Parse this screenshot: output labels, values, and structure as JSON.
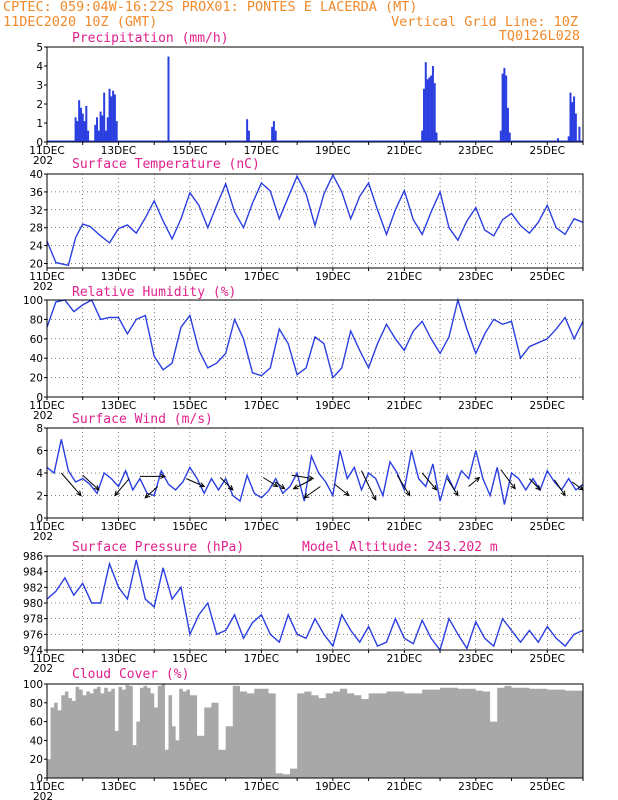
{
  "header": {
    "left_line1": "CPTEC:  059:04W-16:22S  PROX01: PONTES E LACERDA (MT)",
    "left_line2": "11DEC2020 10Z (GMT)",
    "right_line2": "Vertical Grid Line: 10Z",
    "right_line3": "TQ0126L028"
  },
  "colors": {
    "series": "#2b3fe0",
    "cloud": "#a8a8a8",
    "header": "#f08a2c",
    "panel_title": "#e0208c"
  },
  "x_axis": {
    "start_day": 11,
    "end_day": 26,
    "tick_labels": [
      {
        "day": 11,
        "label": "11DEC"
      },
      {
        "day": 13,
        "label": "13DEC"
      },
      {
        "day": 15,
        "label": "15DEC"
      },
      {
        "day": 17,
        "label": "17DEC"
      },
      {
        "day": 19,
        "label": "19DEC"
      },
      {
        "day": 21,
        "label": "21DEC"
      },
      {
        "day": 23,
        "label": "23DEC"
      },
      {
        "day": 25,
        "label": "25DEC"
      }
    ],
    "year_stub": "202"
  },
  "chart_data": [
    {
      "type": "bar",
      "id": "precip",
      "title": "Precipitation (mm/h)",
      "ylim": [
        0,
        5
      ],
      "yticks": [
        0,
        1,
        2,
        3,
        4,
        5
      ],
      "bars": [
        [
          11.8,
          1.3
        ],
        [
          11.85,
          1.1
        ],
        [
          11.9,
          2.2
        ],
        [
          11.95,
          1.8
        ],
        [
          12.0,
          1.5
        ],
        [
          12.05,
          1.1
        ],
        [
          12.1,
          1.9
        ],
        [
          12.15,
          0.6
        ],
        [
          12.35,
          0.9
        ],
        [
          12.4,
          1.3
        ],
        [
          12.45,
          0.6
        ],
        [
          12.5,
          1.6
        ],
        [
          12.55,
          1.4
        ],
        [
          12.6,
          2.6
        ],
        [
          12.65,
          0.6
        ],
        [
          12.7,
          1.3
        ],
        [
          12.75,
          2.8
        ],
        [
          12.8,
          2.4
        ],
        [
          12.85,
          2.7
        ],
        [
          12.9,
          2.5
        ],
        [
          12.95,
          1.1
        ],
        [
          14.4,
          4.5
        ],
        [
          16.6,
          1.2
        ],
        [
          16.65,
          0.6
        ],
        [
          17.3,
          0.8
        ],
        [
          17.35,
          1.1
        ],
        [
          17.4,
          0.6
        ],
        [
          21.5,
          0.6
        ],
        [
          21.55,
          2.8
        ],
        [
          21.6,
          4.2
        ],
        [
          21.65,
          3.3
        ],
        [
          21.7,
          3.4
        ],
        [
          21.75,
          3.5
        ],
        [
          21.8,
          4.0
        ],
        [
          21.85,
          3.1
        ],
        [
          21.9,
          0.5
        ],
        [
          23.7,
          0.6
        ],
        [
          23.75,
          3.6
        ],
        [
          23.8,
          3.9
        ],
        [
          23.85,
          3.5
        ],
        [
          23.9,
          1.8
        ],
        [
          23.95,
          0.5
        ],
        [
          25.3,
          0.2
        ],
        [
          25.6,
          0.3
        ],
        [
          25.65,
          2.6
        ],
        [
          25.7,
          2.1
        ],
        [
          25.75,
          2.4
        ],
        [
          25.8,
          1.5
        ],
        [
          25.9,
          0.8
        ]
      ]
    },
    {
      "type": "line",
      "id": "temp",
      "title": "Surface Temperature (nC)",
      "ylim": [
        19,
        40
      ],
      "yticks": [
        20,
        24,
        28,
        32,
        36,
        40
      ],
      "x": [
        11.0,
        11.25,
        11.6,
        11.8,
        12.0,
        12.2,
        12.5,
        12.75,
        13.0,
        13.25,
        13.5,
        13.75,
        14.0,
        14.25,
        14.5,
        14.75,
        15.0,
        15.25,
        15.5,
        15.75,
        16.0,
        16.25,
        16.5,
        16.75,
        17.0,
        17.25,
        17.5,
        17.75,
        18.0,
        18.25,
        18.5,
        18.75,
        19.0,
        19.25,
        19.5,
        19.75,
        20.0,
        20.25,
        20.5,
        20.75,
        21.0,
        21.25,
        21.5,
        21.75,
        22.0,
        22.25,
        22.5,
        22.75,
        23.0,
        23.25,
        23.5,
        23.75,
        24.0,
        24.25,
        24.5,
        24.75,
        25.0,
        25.25,
        25.5,
        25.75,
        26.0
      ],
      "y": [
        25.0,
        20.2,
        19.6,
        25.8,
        28.8,
        28.3,
        26.2,
        24.6,
        27.8,
        28.6,
        26.8,
        30.2,
        34.0,
        29.5,
        25.5,
        30.0,
        35.8,
        33.0,
        28.0,
        33.0,
        37.8,
        31.5,
        28.0,
        33.5,
        38.0,
        36.2,
        30.0,
        34.8,
        39.5,
        35.5,
        28.5,
        35.5,
        39.8,
        36.0,
        30.0,
        35.0,
        38.0,
        32.0,
        26.5,
        32.0,
        36.3,
        29.8,
        26.5,
        31.5,
        36.0,
        28.0,
        25.2,
        29.5,
        32.5,
        27.5,
        26.2,
        29.8,
        31.2,
        28.5,
        26.8,
        29.2,
        33.0,
        28.0,
        26.5,
        30.0,
        29.2
      ]
    },
    {
      "type": "line",
      "id": "humidity",
      "title": "Relative Humidity (%)",
      "ylim": [
        0,
        100
      ],
      "yticks": [
        0,
        20,
        40,
        60,
        80,
        100
      ],
      "x": [
        11.0,
        11.25,
        11.5,
        11.75,
        12.0,
        12.25,
        12.5,
        12.75,
        13.0,
        13.25,
        13.5,
        13.75,
        14.0,
        14.25,
        14.5,
        14.75,
        15.0,
        15.25,
        15.5,
        15.75,
        16.0,
        16.25,
        16.5,
        16.75,
        17.0,
        17.25,
        17.5,
        17.75,
        18.0,
        18.25,
        18.5,
        18.75,
        19.0,
        19.25,
        19.5,
        19.75,
        20.0,
        20.25,
        20.5,
        20.75,
        21.0,
        21.25,
        21.5,
        21.75,
        22.0,
        22.25,
        22.5,
        22.75,
        23.0,
        23.25,
        23.5,
        23.75,
        24.0,
        24.25,
        24.5,
        24.75,
        25.0,
        25.25,
        25.5,
        25.75,
        26.0
      ],
      "y": [
        72,
        98,
        100,
        88,
        95,
        100,
        80,
        82,
        82,
        65,
        80,
        84,
        42,
        28,
        35,
        72,
        84,
        48,
        30,
        35,
        45,
        80,
        60,
        25,
        22,
        30,
        70,
        55,
        23,
        30,
        62,
        55,
        20,
        30,
        68,
        48,
        30,
        55,
        75,
        60,
        48,
        68,
        78,
        60,
        45,
        62,
        100,
        70,
        45,
        65,
        80,
        75,
        78,
        40,
        52,
        56,
        60,
        70,
        82,
        60,
        78
      ]
    },
    {
      "type": "line",
      "id": "wind",
      "title": "Surface Wind (m/s)",
      "ylim": [
        0,
        8
      ],
      "yticks": [
        0,
        2,
        4,
        6,
        8
      ],
      "x": [
        11.0,
        11.2,
        11.4,
        11.6,
        11.8,
        12.0,
        12.2,
        12.4,
        12.6,
        12.8,
        13.0,
        13.2,
        13.4,
        13.6,
        13.8,
        14.0,
        14.2,
        14.4,
        14.6,
        14.8,
        15.0,
        15.2,
        15.4,
        15.6,
        15.8,
        16.0,
        16.2,
        16.4,
        16.6,
        16.8,
        17.0,
        17.2,
        17.4,
        17.6,
        17.8,
        18.0,
        18.2,
        18.4,
        18.6,
        18.8,
        19.0,
        19.2,
        19.4,
        19.6,
        19.8,
        20.0,
        20.2,
        20.4,
        20.6,
        20.8,
        21.0,
        21.2,
        21.4,
        21.6,
        21.8,
        22.0,
        22.2,
        22.4,
        22.6,
        22.8,
        23.0,
        23.2,
        23.4,
        23.6,
        23.8,
        24.0,
        24.2,
        24.4,
        24.6,
        24.8,
        25.0,
        25.2,
        25.4,
        25.6,
        25.8,
        26.0
      ],
      "y": [
        4.5,
        4.0,
        7.0,
        4.2,
        3.2,
        3.5,
        3.0,
        2.2,
        4.0,
        3.5,
        2.8,
        4.2,
        2.5,
        3.5,
        2.2,
        2.0,
        4.2,
        3.0,
        2.5,
        3.2,
        4.5,
        3.5,
        2.2,
        3.5,
        2.5,
        3.5,
        2.0,
        1.5,
        3.8,
        2.2,
        1.8,
        2.4,
        3.5,
        2.2,
        2.8,
        4.0,
        1.5,
        5.5,
        4.0,
        3.2,
        2.0,
        6.0,
        3.5,
        4.5,
        2.5,
        4.0,
        3.5,
        2.0,
        5.0,
        4.0,
        2.5,
        6.0,
        3.5,
        2.8,
        4.8,
        1.5,
        3.8,
        2.5,
        4.2,
        3.5,
        6.0,
        3.5,
        2.0,
        4.5,
        1.2,
        4.0,
        3.5,
        2.5,
        3.5,
        2.5,
        4.2,
        3.2,
        2.5,
        3.5,
        2.5,
        3.0
      ],
      "arrows": [
        [
          11.4,
          4.0,
          11.95,
          2.0
        ],
        [
          12.0,
          3.8,
          12.45,
          2.5
        ],
        [
          13.3,
          3.5,
          12.9,
          2.0
        ],
        [
          13.6,
          3.7,
          14.3,
          3.7
        ],
        [
          14.1,
          2.8,
          13.75,
          1.8
        ],
        [
          14.9,
          3.5,
          15.4,
          2.8
        ],
        [
          15.85,
          3.6,
          16.2,
          2.5
        ],
        [
          17.05,
          3.6,
          17.45,
          2.8
        ],
        [
          17.4,
          3.2,
          17.65,
          2.6
        ],
        [
          17.85,
          3.8,
          18.45,
          3.5
        ],
        [
          18.4,
          3.4,
          17.9,
          2.6
        ],
        [
          18.65,
          2.8,
          18.2,
          1.8
        ],
        [
          19.05,
          3.0,
          19.45,
          2.0
        ],
        [
          19.8,
          4.2,
          20.2,
          1.6
        ],
        [
          20.8,
          3.8,
          21.15,
          2.0
        ],
        [
          21.5,
          4.0,
          21.9,
          2.5
        ],
        [
          22.2,
          3.5,
          22.5,
          2.0
        ],
        [
          22.8,
          2.8,
          23.1,
          3.6
        ],
        [
          23.7,
          4.3,
          24.1,
          2.6
        ],
        [
          24.5,
          3.5,
          24.8,
          2.5
        ],
        [
          25.2,
          3.4,
          25.5,
          2.0
        ],
        [
          25.7,
          3.2,
          26.0,
          2.5
        ]
      ]
    },
    {
      "type": "line",
      "id": "pressure",
      "title": "Surface Pressure (hPa)",
      "annotation": "Model Altitude: 243.202 m",
      "ylim": [
        974,
        986
      ],
      "yticks": [
        974,
        976,
        978,
        980,
        982,
        984,
        986
      ],
      "x": [
        11.0,
        11.25,
        11.5,
        11.75,
        12.0,
        12.25,
        12.5,
        12.75,
        13.0,
        13.25,
        13.5,
        13.75,
        14.0,
        14.25,
        14.5,
        14.75,
        15.0,
        15.25,
        15.5,
        15.75,
        16.0,
        16.25,
        16.5,
        16.75,
        17.0,
        17.25,
        17.5,
        17.75,
        18.0,
        18.25,
        18.5,
        18.75,
        19.0,
        19.25,
        19.5,
        19.75,
        20.0,
        20.25,
        20.5,
        20.75,
        21.0,
        21.25,
        21.5,
        21.75,
        22.0,
        22.25,
        22.5,
        22.75,
        23.0,
        23.25,
        23.5,
        23.75,
        24.0,
        24.25,
        24.5,
        24.75,
        25.0,
        25.25,
        25.5,
        25.75,
        26.0
      ],
      "y": [
        980.5,
        981.5,
        983.2,
        981.0,
        982.5,
        980.0,
        980.0,
        985.0,
        982.0,
        980.5,
        985.5,
        980.5,
        979.5,
        984.5,
        980.5,
        982.0,
        976.0,
        978.5,
        980.0,
        976.0,
        976.5,
        978.5,
        975.5,
        977.5,
        978.5,
        976.0,
        975.0,
        978.5,
        976.0,
        975.5,
        978.0,
        976.0,
        974.5,
        978.5,
        976.5,
        975.0,
        977.0,
        974.5,
        975.0,
        978.0,
        975.5,
        974.8,
        977.8,
        975.5,
        974.0,
        978.0,
        976.0,
        974.2,
        977.6,
        975.5,
        974.5,
        978.0,
        976.5,
        975.0,
        976.5,
        975.0,
        977.0,
        975.5,
        974.5,
        976.0,
        976.5
      ]
    },
    {
      "type": "area",
      "id": "cloud",
      "title": "Cloud Cover (%)",
      "ylim": [
        0,
        100
      ],
      "yticks": [
        0,
        20,
        40,
        60,
        80,
        100
      ],
      "x": [
        11.0,
        11.1,
        11.2,
        11.3,
        11.4,
        11.5,
        11.6,
        11.7,
        11.8,
        11.9,
        12.0,
        12.1,
        12.2,
        12.3,
        12.4,
        12.5,
        12.6,
        12.7,
        12.8,
        12.9,
        13.0,
        13.1,
        13.2,
        13.3,
        13.4,
        13.5,
        13.6,
        13.7,
        13.8,
        13.9,
        14.0,
        14.1,
        14.2,
        14.3,
        14.4,
        14.5,
        14.6,
        14.7,
        14.8,
        14.9,
        15.0,
        15.2,
        15.4,
        15.6,
        15.8,
        16.0,
        16.2,
        16.4,
        16.6,
        16.8,
        17.0,
        17.2,
        17.4,
        17.6,
        17.8,
        18.0,
        18.2,
        18.4,
        18.6,
        18.8,
        19.0,
        19.2,
        19.4,
        19.6,
        19.8,
        20.0,
        20.5,
        21.0,
        21.5,
        22.0,
        22.5,
        23.0,
        23.2,
        23.4,
        23.6,
        23.8,
        24.0,
        24.5,
        25.0,
        25.5,
        26.0
      ],
      "y": [
        20,
        75,
        80,
        72,
        88,
        92,
        85,
        82,
        97,
        94,
        88,
        92,
        90,
        95,
        97,
        90,
        96,
        92,
        95,
        50,
        97,
        94,
        99,
        98,
        35,
        60,
        96,
        98,
        96,
        90,
        75,
        98,
        100,
        30,
        88,
        55,
        40,
        95,
        92,
        94,
        88,
        45,
        75,
        80,
        30,
        55,
        98,
        92,
        90,
        95,
        95,
        90,
        5,
        4,
        10,
        90,
        92,
        88,
        85,
        90,
        92,
        95,
        90,
        88,
        84,
        90,
        92,
        90,
        94,
        96,
        95,
        93,
        92,
        60,
        96,
        98,
        96,
        95,
        94,
        93,
        94
      ]
    }
  ]
}
